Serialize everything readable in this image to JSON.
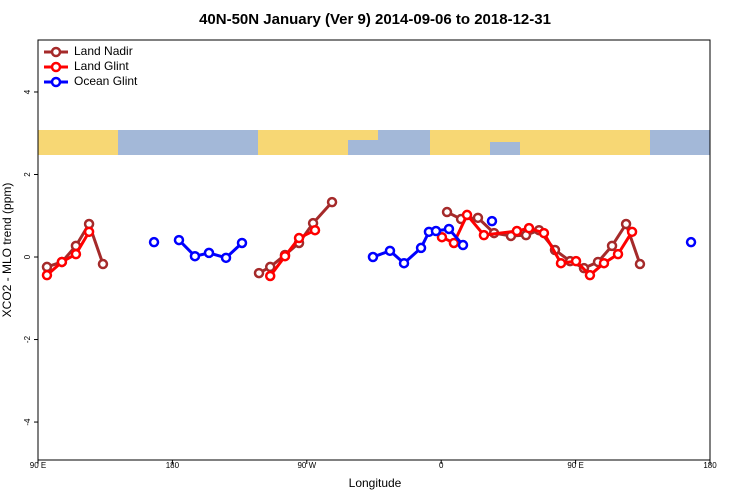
{
  "chart_data": {
    "type": "line",
    "title": "40N-50N January (Ver 9)   2014-09-06 to 2018-12-31",
    "x_label": "Longitude",
    "y_label": "XCO2 - MLO trend (ppm)",
    "xlim": [
      90,
      540
    ],
    "ylim": [
      -4.92,
      5.26
    ],
    "xticks": [
      {
        "value": 90,
        "label": "90 E"
      },
      180,
      {
        "value": 270,
        "label": "90 W"
      },
      {
        "value": 360,
        "label": "0"
      },
      {
        "value": 450,
        "label": "90 E"
      },
      {
        "value": 540,
        "label": "180"
      }
    ],
    "yticks": [
      -4,
      -2,
      0,
      2,
      4
    ],
    "legend": "top-left",
    "series": [
      {
        "name": "Land Nadir",
        "color": "#a52a2a",
        "x": [
          96,
          106,
          115.4,
          124.2,
          133.5,
          null,
          238,
          245.5,
          255.4,
          264.8,
          274.2,
          286.9,
          null,
          363.9,
          373.3,
          384.6,
          395.4,
          406.7,
          416.8,
          425.5,
          436.2,
          446.3,
          455.6,
          465,
          474.4,
          483.8,
          493.1
        ],
        "values": [
          -0.24,
          -0.12,
          0.27,
          0.8,
          -0.17,
          null,
          -0.39,
          -0.24,
          0.05,
          0.34,
          0.82,
          1.33,
          null,
          1.09,
          0.92,
          0.95,
          0.58,
          0.51,
          0.53,
          0.65,
          0.17,
          -0.1,
          -0.27,
          -0.12,
          0.27,
          0.8,
          -0.17
        ]
      },
      {
        "name": "Land Glint",
        "color": "#ff0000",
        "x": [
          96,
          106,
          115.4,
          124.2,
          null,
          245.5,
          255.4,
          264.8,
          275.5,
          null,
          360.5,
          368.5,
          377.3,
          388.6,
          410.7,
          418.8,
          428.8,
          440.2,
          450.3,
          459.6,
          469,
          478.4,
          487.8
        ],
        "values": [
          -0.44,
          -0.12,
          0.07,
          0.61,
          null,
          -0.46,
          0.02,
          0.46,
          0.65,
          null,
          0.48,
          0.34,
          1.02,
          0.53,
          0.63,
          0.7,
          0.58,
          -0.15,
          -0.1,
          -0.44,
          -0.15,
          0.07,
          0.61
        ]
      },
      {
        "name": "Ocean Glint",
        "color": "#0000ff",
        "x": [
          167.7,
          null,
          184.4,
          195.1,
          204.5,
          215.9,
          226.6,
          null,
          314.3,
          325.7,
          335.1,
          346.5,
          351.8,
          356.5,
          365.2,
          374.6,
          null,
          394,
          null,
          527.3
        ],
        "values": [
          0.36,
          null,
          0.41,
          0.02,
          0.1,
          -0.02,
          0.34,
          null,
          0,
          0.15,
          -0.15,
          0.22,
          0.61,
          0.63,
          0.68,
          0.29,
          null,
          0.87,
          null,
          0.36
        ]
      }
    ]
  }
}
